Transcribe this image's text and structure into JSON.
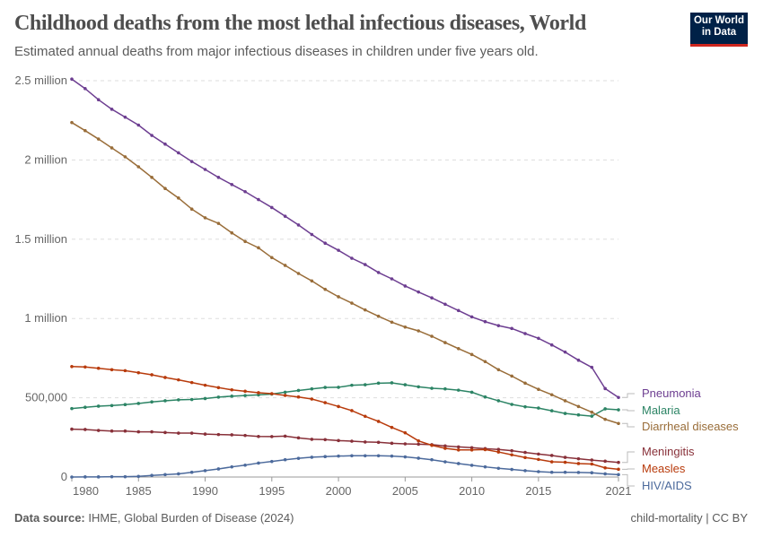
{
  "header": {
    "title": "Childhood deaths from the most lethal infectious diseases, World",
    "subtitle": "Estimated annual deaths from major infectious diseases in children under five years old."
  },
  "logo": {
    "text": "Our World in Data",
    "bg": "#002147",
    "accent": "#ce261e"
  },
  "footer": {
    "source_label": "Data source:",
    "source": "IHME, Global Burden of Disease (2024)",
    "license": "child-mortality | CC BY"
  },
  "chart_data": {
    "type": "line",
    "title": "Childhood deaths from the most lethal infectious diseases, World",
    "xlim": [
      1980,
      2021
    ],
    "ylim": [
      0,
      2500000
    ],
    "grid": "horizontal dashed",
    "legend": "right (inline labels at line ends)",
    "x_ticks": [
      {
        "v": 1980,
        "label": "1980"
      },
      {
        "v": 1985,
        "label": "1985"
      },
      {
        "v": 1990,
        "label": "1990"
      },
      {
        "v": 1995,
        "label": "1995"
      },
      {
        "v": 2000,
        "label": "2000"
      },
      {
        "v": 2005,
        "label": "2005"
      },
      {
        "v": 2010,
        "label": "2010"
      },
      {
        "v": 2015,
        "label": "2015"
      },
      {
        "v": 2021,
        "label": "2021"
      }
    ],
    "y_ticks": [
      {
        "v": 0,
        "label": "0"
      },
      {
        "v": 500000,
        "label": "500,000"
      },
      {
        "v": 1000000,
        "label": "1 million"
      },
      {
        "v": 1500000,
        "label": "1.5 million"
      },
      {
        "v": 2000000,
        "label": "2 million"
      },
      {
        "v": 2500000,
        "label": "2.5 million"
      }
    ],
    "x": [
      1980,
      1981,
      1982,
      1983,
      1984,
      1985,
      1986,
      1987,
      1988,
      1989,
      1990,
      1991,
      1992,
      1993,
      1994,
      1995,
      1996,
      1997,
      1998,
      1999,
      2000,
      2001,
      2002,
      2003,
      2004,
      2005,
      2006,
      2007,
      2008,
      2009,
      2010,
      2011,
      2012,
      2013,
      2014,
      2015,
      2016,
      2017,
      2018,
      2019,
      2020,
      2021
    ],
    "series": [
      {
        "name": "Pneumonia",
        "color": "#6d3e91",
        "values": [
          2510000,
          2450000,
          2380000,
          2320000,
          2270000,
          2220000,
          2155000,
          2100000,
          2045000,
          1990000,
          1940000,
          1890000,
          1845000,
          1800000,
          1750000,
          1700000,
          1645000,
          1590000,
          1530000,
          1475000,
          1430000,
          1380000,
          1340000,
          1290000,
          1250000,
          1205000,
          1167000,
          1130000,
          1090000,
          1050000,
          1010000,
          980000,
          955000,
          937000,
          905000,
          875000,
          833000,
          788000,
          737000,
          692000,
          558000,
          502000
        ]
      },
      {
        "name": "Malaria",
        "color": "#2c8465",
        "values": [
          432000,
          440000,
          447000,
          451000,
          457000,
          464000,
          474000,
          481000,
          487000,
          489000,
          495000,
          504000,
          510000,
          514000,
          518000,
          523000,
          535000,
          546000,
          556000,
          565000,
          566000,
          579000,
          582000,
          592000,
          594000,
          582000,
          569000,
          560000,
          556000,
          548000,
          535000,
          505000,
          481000,
          458000,
          443000,
          435000,
          418000,
          401000,
          392000,
          384000,
          430000,
          424000
        ]
      },
      {
        "name": "Diarrheal diseases",
        "color": "#996d39",
        "values": [
          2236000,
          2185000,
          2132000,
          2076000,
          2020000,
          1957000,
          1890000,
          1820000,
          1760000,
          1690000,
          1635000,
          1600000,
          1540000,
          1486000,
          1446000,
          1384000,
          1335000,
          1284000,
          1237000,
          1184000,
          1137000,
          1097000,
          1054000,
          1014000,
          977000,
          946000,
          922000,
          888000,
          848000,
          810000,
          773000,
          728000,
          677000,
          637000,
          592000,
          553000,
          519000,
          481000,
          445000,
          409000,
          364000,
          338000
        ]
      },
      {
        "name": "Meningitis",
        "color": "#883039",
        "values": [
          302000,
          300000,
          294000,
          290000,
          290000,
          285000,
          285000,
          281000,
          277000,
          277000,
          271000,
          268000,
          266000,
          262000,
          256000,
          255000,
          258000,
          247000,
          238000,
          236000,
          230000,
          226000,
          221000,
          219000,
          213000,
          209000,
          207000,
          204000,
          196000,
          190000,
          185000,
          179000,
          174000,
          166000,
          155000,
          145000,
          136000,
          124000,
          115000,
          107000,
          100000,
          92000
        ]
      },
      {
        "name": "Measles",
        "color": "#b83b0c",
        "values": [
          697000,
          694000,
          686000,
          677000,
          671000,
          658000,
          645000,
          628000,
          613000,
          596000,
          579000,
          564000,
          550000,
          541000,
          532000,
          526000,
          515000,
          505000,
          492000,
          469000,
          445000,
          419000,
          383000,
          351000,
          313000,
          279000,
          228000,
          200000,
          181000,
          171000,
          171000,
          173000,
          158000,
          140000,
          123000,
          111000,
          96000,
          93000,
          85000,
          82000,
          58000,
          49000
        ]
      },
      {
        "name": "HIV/AIDS",
        "color": "#4c6a9c",
        "values": [
          0,
          1000,
          1000,
          2000,
          2000,
          4000,
          10000,
          15000,
          20000,
          30000,
          40000,
          51000,
          64000,
          75000,
          88000,
          98000,
          109000,
          118000,
          125000,
          129000,
          132000,
          134000,
          134000,
          134000,
          132000,
          127000,
          119000,
          109000,
          96000,
          85000,
          74000,
          64000,
          55000,
          48000,
          40000,
          34000,
          30000,
          30000,
          29000,
          27000,
          20000,
          15000
        ]
      }
    ]
  }
}
